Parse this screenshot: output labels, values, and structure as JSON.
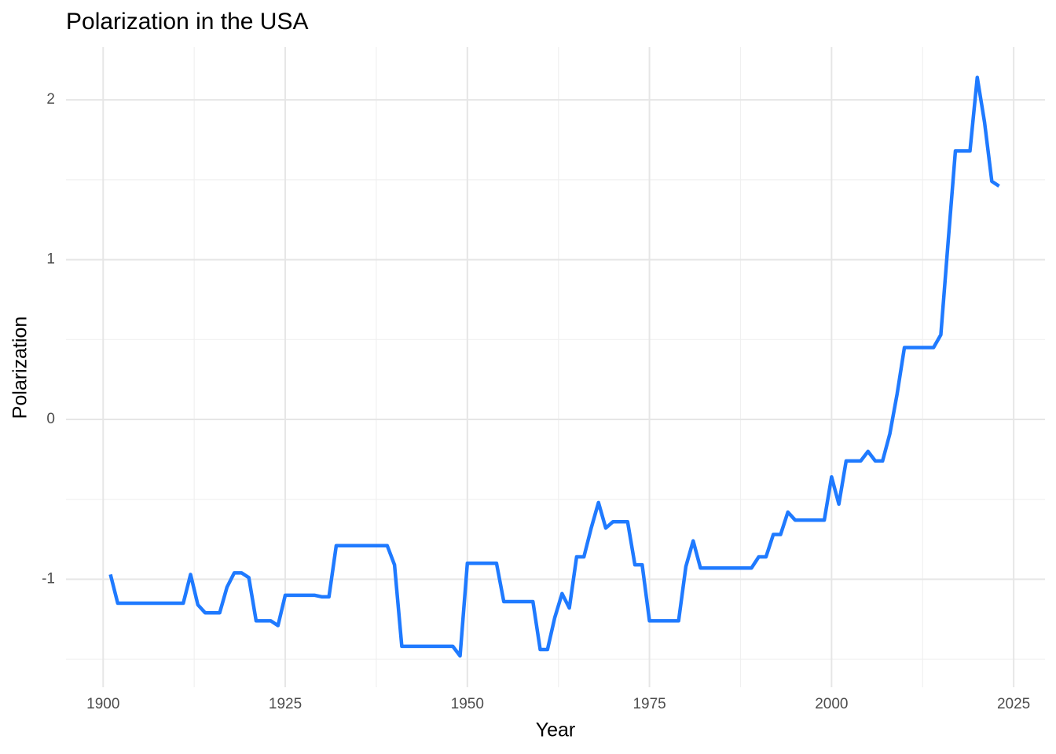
{
  "chart_data": {
    "type": "line",
    "title": "Polarization in the USA",
    "x_label": "Year",
    "y_label": "Polarization",
    "x": [
      1901,
      1902,
      1903,
      1904,
      1905,
      1906,
      1907,
      1908,
      1909,
      1910,
      1911,
      1912,
      1913,
      1914,
      1915,
      1916,
      1917,
      1918,
      1919,
      1920,
      1921,
      1922,
      1923,
      1924,
      1925,
      1926,
      1927,
      1928,
      1929,
      1930,
      1931,
      1932,
      1933,
      1934,
      1935,
      1936,
      1937,
      1938,
      1939,
      1940,
      1941,
      1942,
      1943,
      1944,
      1945,
      1946,
      1947,
      1948,
      1949,
      1950,
      1951,
      1952,
      1953,
      1954,
      1955,
      1956,
      1957,
      1958,
      1959,
      1960,
      1961,
      1962,
      1963,
      1964,
      1965,
      1966,
      1967,
      1968,
      1969,
      1970,
      1971,
      1972,
      1973,
      1974,
      1975,
      1976,
      1977,
      1978,
      1979,
      1980,
      1981,
      1982,
      1983,
      1984,
      1985,
      1986,
      1987,
      1988,
      1989,
      1990,
      1991,
      1992,
      1993,
      1994,
      1995,
      1996,
      1997,
      1998,
      1999,
      2000,
      2001,
      2002,
      2003,
      2004,
      2005,
      2006,
      2007,
      2008,
      2009,
      2010,
      2011,
      2012,
      2013,
      2014,
      2015,
      2016,
      2017,
      2018,
      2019,
      2020,
      2021,
      2022,
      2023
    ],
    "values": [
      -0.97,
      -1.15,
      -1.15,
      -1.15,
      -1.15,
      -1.15,
      -1.15,
      -1.15,
      -1.15,
      -1.15,
      -1.15,
      -0.97,
      -1.16,
      -1.21,
      -1.21,
      -1.21,
      -1.05,
      -0.96,
      -0.96,
      -0.99,
      -1.26,
      -1.26,
      -1.26,
      -1.29,
      -1.1,
      -1.1,
      -1.1,
      -1.1,
      -1.1,
      -1.11,
      -1.11,
      -0.79,
      -0.79,
      -0.79,
      -0.79,
      -0.79,
      -0.79,
      -0.79,
      -0.79,
      -0.91,
      -1.42,
      -1.42,
      -1.42,
      -1.42,
      -1.42,
      -1.42,
      -1.42,
      -1.42,
      -1.48,
      -0.9,
      -0.9,
      -0.9,
      -0.9,
      -0.9,
      -1.14,
      -1.14,
      -1.14,
      -1.14,
      -1.14,
      -1.44,
      -1.44,
      -1.24,
      -1.09,
      -1.18,
      -0.86,
      -0.86,
      -0.68,
      -0.52,
      -0.68,
      -0.64,
      -0.64,
      -0.64,
      -0.91,
      -0.91,
      -1.26,
      -1.26,
      -1.26,
      -1.26,
      -1.26,
      -0.92,
      -0.76,
      -0.93,
      -0.93,
      -0.93,
      -0.93,
      -0.93,
      -0.93,
      -0.93,
      -0.93,
      -0.86,
      -0.86,
      -0.72,
      -0.72,
      -0.58,
      -0.63,
      -0.63,
      -0.63,
      -0.63,
      -0.63,
      -0.36,
      -0.53,
      -0.26,
      -0.26,
      -0.26,
      -0.2,
      -0.26,
      -0.26,
      -0.09,
      0.16,
      0.45,
      0.45,
      0.45,
      0.45,
      0.45,
      0.53,
      1.11,
      1.68,
      1.68,
      1.68,
      2.14,
      1.86,
      1.49,
      1.46
    ],
    "color": "#1f7aff",
    "xlim": [
      1894.9,
      2029.3
    ],
    "xticks": [
      1900,
      1925,
      1950,
      1975,
      2000,
      2025
    ],
    "ylim": [
      -1.676,
      2.33
    ],
    "yticks": [
      -1,
      0,
      1,
      2
    ],
    "grid": true
  }
}
